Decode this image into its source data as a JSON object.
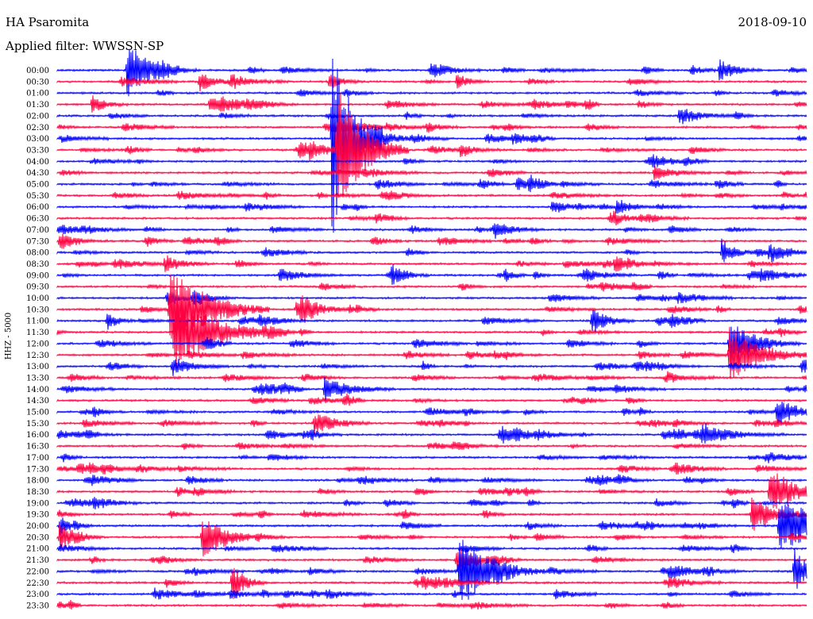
{
  "header": {
    "station": "HA Psaromita",
    "filter": "Applied filter: WWSSN-SP",
    "date": "2018-09-10",
    "channel": "HHZ - 5000"
  },
  "chart_data": {
    "type": "line",
    "title": "HA Psaromita",
    "subtitle": "Applied filter: WWSSN-SP",
    "ylabel": "HHZ - 5000",
    "trace_labels": [
      "00:00",
      "00:30",
      "01:00",
      "01:30",
      "02:00",
      "02:30",
      "03:00",
      "03:30",
      "04:00",
      "04:30",
      "05:00",
      "05:30",
      "06:00",
      "06:30",
      "07:00",
      "07:30",
      "08:00",
      "08:30",
      "09:00",
      "09:30",
      "10:00",
      "10:30",
      "11:00",
      "11:30",
      "12:00",
      "12:30",
      "13:00",
      "13:30",
      "14:00",
      "14:30",
      "15:00",
      "15:30",
      "16:00",
      "16:30",
      "17:00",
      "17:30",
      "18:00",
      "18:30",
      "19:00",
      "19:30",
      "20:00",
      "20:30",
      "21:00",
      "21:30",
      "22:00",
      "22:30",
      "23:00",
      "23:30"
    ],
    "trace_duration_minutes": 30,
    "colors": [
      "#0000ff",
      "#ff0040"
    ],
    "events": [
      {
        "trace": 0,
        "minute": 2.8,
        "amp": 3.0,
        "dur": 0.8
      },
      {
        "trace": 0,
        "minute": 26.5,
        "amp": 1.2,
        "dur": 0.6
      },
      {
        "trace": 1,
        "minute": 5.7,
        "amp": 1.0,
        "dur": 0.6
      },
      {
        "trace": 1,
        "minute": 10.9,
        "amp": 0.8,
        "dur": 0.5
      },
      {
        "trace": 1,
        "minute": 16.0,
        "amp": 0.8,
        "dur": 0.5
      },
      {
        "trace": 3,
        "minute": 1.4,
        "amp": 1.0,
        "dur": 0.5
      },
      {
        "trace": 3,
        "minute": 6.1,
        "amp": 0.7,
        "dur": 1.0
      },
      {
        "trace": 4,
        "minute": 24.9,
        "amp": 1.0,
        "dur": 0.8
      },
      {
        "trace": 6,
        "minute": 11.0,
        "amp": 12.0,
        "dur": 0.7
      },
      {
        "trace": 6,
        "minute": 12.6,
        "amp": 0.9,
        "dur": 0.8
      },
      {
        "trace": 7,
        "minute": 9.7,
        "amp": 1.0,
        "dur": 0.5
      },
      {
        "trace": 7,
        "minute": 11.2,
        "amp": 7.0,
        "dur": 1.0
      },
      {
        "trace": 9,
        "minute": 23.9,
        "amp": 0.8,
        "dur": 0.8
      },
      {
        "trace": 10,
        "minute": 18.9,
        "amp": 0.7,
        "dur": 0.5
      },
      {
        "trace": 12,
        "minute": 19.8,
        "amp": 0.8,
        "dur": 0.6
      },
      {
        "trace": 12,
        "minute": 22.4,
        "amp": 0.9,
        "dur": 0.6
      },
      {
        "trace": 14,
        "minute": 17.5,
        "amp": 0.9,
        "dur": 0.6
      },
      {
        "trace": 15,
        "minute": 0.1,
        "amp": 1.0,
        "dur": 0.4
      },
      {
        "trace": 16,
        "minute": 26.6,
        "amp": 1.4,
        "dur": 0.5
      },
      {
        "trace": 16,
        "minute": 28.5,
        "amp": 0.9,
        "dur": 0.7
      },
      {
        "trace": 17,
        "minute": 4.3,
        "amp": 0.9,
        "dur": 0.7
      },
      {
        "trace": 18,
        "minute": 8.9,
        "amp": 0.8,
        "dur": 0.8
      },
      {
        "trace": 18,
        "minute": 13.4,
        "amp": 1.0,
        "dur": 0.3
      },
      {
        "trace": 20,
        "minute": 4.4,
        "amp": 1.0,
        "dur": 0.5
      },
      {
        "trace": 21,
        "minute": 4.5,
        "amp": 4.5,
        "dur": 1.4
      },
      {
        "trace": 21,
        "minute": 9.6,
        "amp": 1.0,
        "dur": 0.8
      },
      {
        "trace": 22,
        "minute": 2.0,
        "amp": 1.0,
        "dur": 0.4
      },
      {
        "trace": 22,
        "minute": 21.4,
        "amp": 1.4,
        "dur": 0.6
      },
      {
        "trace": 23,
        "minute": 4.7,
        "amp": 4.0,
        "dur": 1.6
      },
      {
        "trace": 24,
        "minute": 26.9,
        "amp": 2.5,
        "dur": 1.0
      },
      {
        "trace": 25,
        "minute": 26.9,
        "amp": 3.0,
        "dur": 1.2
      },
      {
        "trace": 26,
        "minute": 4.6,
        "amp": 1.0,
        "dur": 0.8
      },
      {
        "trace": 28,
        "minute": 10.7,
        "amp": 1.3,
        "dur": 1.0
      },
      {
        "trace": 31,
        "minute": 10.3,
        "amp": 1.0,
        "dur": 0.8
      },
      {
        "trace": 30,
        "minute": 28.8,
        "amp": 1.5,
        "dur": 0.8
      },
      {
        "trace": 32,
        "minute": 17.7,
        "amp": 1.0,
        "dur": 1.2
      },
      {
        "trace": 32,
        "minute": 25.8,
        "amp": 1.0,
        "dur": 1.2
      },
      {
        "trace": 37,
        "minute": 28.5,
        "amp": 1.8,
        "dur": 0.9
      },
      {
        "trace": 39,
        "minute": 27.8,
        "amp": 1.8,
        "dur": 1.0
      },
      {
        "trace": 40,
        "minute": 28.9,
        "amp": 2.8,
        "dur": 2.0
      },
      {
        "trace": 40,
        "minute": 0.1,
        "amp": 1.0,
        "dur": 0.5
      },
      {
        "trace": 41,
        "minute": 0.1,
        "amp": 1.5,
        "dur": 0.6
      },
      {
        "trace": 41,
        "minute": 5.8,
        "amp": 2.0,
        "dur": 0.8
      },
      {
        "trace": 44,
        "minute": 16.1,
        "amp": 4.0,
        "dur": 1.2
      },
      {
        "trace": 45,
        "minute": 7.0,
        "amp": 2.0,
        "dur": 0.5
      },
      {
        "trace": 43,
        "minute": 16.0,
        "amp": 1.5,
        "dur": 0.8
      },
      {
        "trace": 44,
        "minute": 29.5,
        "amp": 2.5,
        "dur": 0.5
      }
    ]
  }
}
